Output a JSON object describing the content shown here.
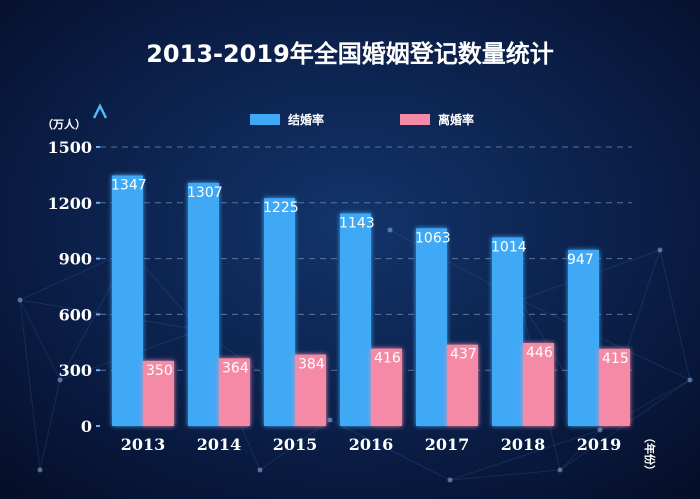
{
  "chart_data": {
    "type": "bar",
    "title": "2013-2019年全国婚姻登记数量统计",
    "y_unit": "（万人）",
    "x_unit": "（年份）",
    "categories": [
      "2013",
      "2014",
      "2015",
      "2016",
      "2017",
      "2018",
      "2019"
    ],
    "series": [
      {
        "name": "结婚率",
        "values": [
          1347,
          1307,
          1225,
          1143,
          1063,
          1014,
          947
        ],
        "color": "#3fa9f5"
      },
      {
        "name": "离婚率",
        "values": [
          350,
          364,
          384,
          416,
          437,
          446,
          415
        ],
        "color": "#f48aa6"
      }
    ],
    "ylim": [
      0,
      1500
    ],
    "yticks": [
      "0",
      "300",
      "600",
      "900",
      "1200",
      "1500"
    ],
    "grid": true,
    "legend": "top-center",
    "colors": {
      "background": "#0a1a3c",
      "text": "#ffffff",
      "axis": "#56b7ff",
      "grid": "#6f86a6"
    }
  }
}
